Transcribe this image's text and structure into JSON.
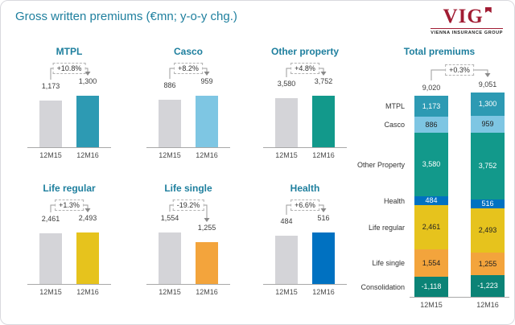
{
  "header": {
    "title": "Gross written premiums (€mn; y-o-y chg.)",
    "logo": {
      "text": "VIG",
      "subtitle": "VIENNA INSURANCE GROUP"
    }
  },
  "colors": {
    "accent_teal": "#1e7f9e",
    "logo_red": "#a11c33",
    "axis_gray": "#a8a8a8",
    "bar_gray_12m15": "#d4d4d8"
  },
  "chart_data": [
    {
      "type": "bar",
      "title": "MTPL",
      "change": "+10.8%",
      "categories": [
        "12M15",
        "12M16"
      ],
      "values": [
        1173,
        1300
      ],
      "value_labels": [
        "1,173",
        "1,300"
      ],
      "bar_colors": [
        "#d4d4d8",
        "#2d9ab3"
      ]
    },
    {
      "type": "bar",
      "title": "Casco",
      "change": "+8.2%",
      "categories": [
        "12M15",
        "12M16"
      ],
      "values": [
        886,
        959
      ],
      "value_labels": [
        "886",
        "959"
      ],
      "bar_colors": [
        "#d4d4d8",
        "#7ec6e3"
      ]
    },
    {
      "type": "bar",
      "title": "Other property",
      "change": "+4.8%",
      "categories": [
        "12M15",
        "12M16"
      ],
      "values": [
        3580,
        3752
      ],
      "value_labels": [
        "3,580",
        "3,752"
      ],
      "bar_colors": [
        "#d4d4d8",
        "#12998b"
      ]
    },
    {
      "type": "bar",
      "title": "Life regular",
      "change": "+1.3%",
      "categories": [
        "12M15",
        "12M16"
      ],
      "values": [
        2461,
        2493
      ],
      "value_labels": [
        "2,461",
        "2,493"
      ],
      "bar_colors": [
        "#d4d4d8",
        "#e6c31d"
      ]
    },
    {
      "type": "bar",
      "title": "Life single",
      "change": "-19.2%",
      "categories": [
        "12M15",
        "12M16"
      ],
      "values": [
        1554,
        1255
      ],
      "value_labels": [
        "1,554",
        "1,255"
      ],
      "bar_colors": [
        "#d4d4d8",
        "#f3a43c"
      ]
    },
    {
      "type": "bar",
      "title": "Health",
      "change": "+6.6%",
      "categories": [
        "12M15",
        "12M16"
      ],
      "values": [
        484,
        516
      ],
      "value_labels": [
        "484",
        "516"
      ],
      "bar_colors": [
        "#d4d4d8",
        "#0071c1"
      ]
    },
    {
      "type": "stacked-bar",
      "title": "Total premiums",
      "change": "+0.3%",
      "categories": [
        "12M15",
        "12M16"
      ],
      "totals": [
        9020,
        9051
      ],
      "total_labels": [
        "9,020",
        "9,051"
      ],
      "series": [
        {
          "name": "MTPL",
          "values": [
            1173,
            1300
          ],
          "labels": [
            "1,173",
            "1,300"
          ],
          "color": "#2d9ab3",
          "text_color": "#ffffff"
        },
        {
          "name": "Casco",
          "values": [
            886,
            959
          ],
          "labels": [
            "886",
            "959"
          ],
          "color": "#7ec6e3",
          "text_color": "#222222"
        },
        {
          "name": "Other Property",
          "values": [
            3580,
            3752
          ],
          "labels": [
            "3,580",
            "3,752"
          ],
          "color": "#12998b",
          "text_color": "#ffffff"
        },
        {
          "name": "Health",
          "values": [
            484,
            516
          ],
          "labels": [
            "484",
            "516"
          ],
          "color": "#0071c1",
          "text_color": "#ffffff"
        },
        {
          "name": "Life regular",
          "values": [
            2461,
            2493
          ],
          "labels": [
            "2,461",
            "2,493"
          ],
          "color": "#e6c31d",
          "text_color": "#222222"
        },
        {
          "name": "Life single",
          "values": [
            1554,
            1255
          ],
          "labels": [
            "1,554",
            "1,255"
          ],
          "color": "#f3a43c",
          "text_color": "#222222"
        },
        {
          "name": "Consolidation",
          "values": [
            -1118,
            -1223
          ],
          "labels": [
            "-1,118",
            "-1,223"
          ],
          "color": "#0b8376",
          "text_color": "#ffffff"
        }
      ]
    }
  ]
}
